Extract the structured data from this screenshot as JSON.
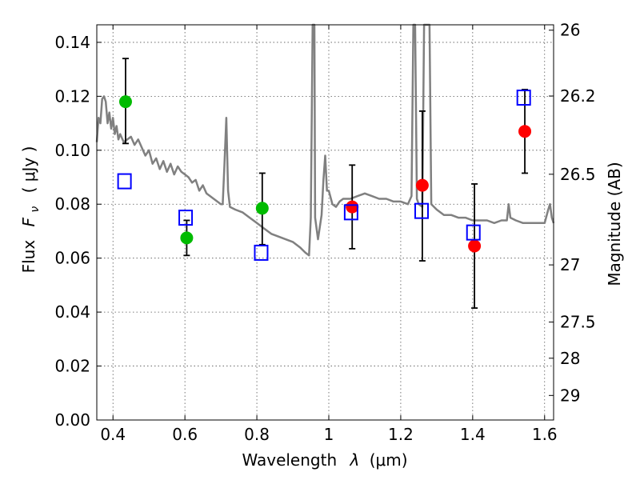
{
  "chart_data": {
    "type": "scatter",
    "xlabel_main": "Wavelength",
    "xlabel_symbol": "λ",
    "xlabel_unit": "(μm)",
    "ylabel_main": "Flux",
    "ylabel_symbol": "F",
    "ylabel_subscript": "ν",
    "ylabel_unit": "( μJy )",
    "y2label": "Magnitude (AB)",
    "xlim": [
      0.355,
      1.625
    ],
    "ylim": [
      0.0,
      0.1465
    ],
    "grid": true,
    "x_ticks": [
      0.4,
      0.6,
      0.8,
      1.0,
      1.2,
      1.4,
      1.6
    ],
    "x_tick_labels": [
      "0.4",
      "0.6",
      "0.8",
      "1",
      "1.2",
      "1.4",
      "1.6"
    ],
    "y_ticks": [
      0.0,
      0.02,
      0.04,
      0.06,
      0.08,
      0.1,
      0.12,
      0.14
    ],
    "y_tick_labels": [
      "0.00",
      "0.02",
      "0.04",
      "0.06",
      "0.08",
      "0.10",
      "0.12",
      "0.14"
    ],
    "y2_ticks": [
      {
        "label": "26",
        "flux": 0.1445
      },
      {
        "label": "26.2",
        "flux": 0.1201
      },
      {
        "label": "26.5",
        "flux": 0.0911
      },
      {
        "label": "27",
        "flux": 0.0575
      },
      {
        "label": "27.5",
        "flux": 0.0363
      },
      {
        "label": "28",
        "flux": 0.0229
      },
      {
        "label": "29",
        "flux": 0.0091
      }
    ],
    "colors": {
      "model": "#808080",
      "green": "#00bb00",
      "red": "#ff0000",
      "square": "#0000ff",
      "errorbar": "#000000",
      "grid": "#555555"
    },
    "series": [
      {
        "kind": "model-spectrum",
        "points": [
          [
            0.355,
            0.103
          ],
          [
            0.36,
            0.112
          ],
          [
            0.365,
            0.11
          ],
          [
            0.37,
            0.119
          ],
          [
            0.375,
            0.12
          ],
          [
            0.38,
            0.118
          ],
          [
            0.385,
            0.11
          ],
          [
            0.39,
            0.114
          ],
          [
            0.395,
            0.108
          ],
          [
            0.4,
            0.112
          ],
          [
            0.405,
            0.106
          ],
          [
            0.41,
            0.109
          ],
          [
            0.415,
            0.104
          ],
          [
            0.42,
            0.106
          ],
          [
            0.43,
            0.103
          ],
          [
            0.44,
            0.104
          ],
          [
            0.45,
            0.105
          ],
          [
            0.46,
            0.102
          ],
          [
            0.47,
            0.104
          ],
          [
            0.48,
            0.101
          ],
          [
            0.49,
            0.098
          ],
          [
            0.5,
            0.1
          ],
          [
            0.51,
            0.095
          ],
          [
            0.52,
            0.097
          ],
          [
            0.53,
            0.093
          ],
          [
            0.54,
            0.096
          ],
          [
            0.55,
            0.092
          ],
          [
            0.56,
            0.095
          ],
          [
            0.57,
            0.091
          ],
          [
            0.58,
            0.094
          ],
          [
            0.59,
            0.092
          ],
          [
            0.6,
            0.091
          ],
          [
            0.61,
            0.09
          ],
          [
            0.62,
            0.088
          ],
          [
            0.63,
            0.089
          ],
          [
            0.64,
            0.085
          ],
          [
            0.65,
            0.087
          ],
          [
            0.66,
            0.084
          ],
          [
            0.67,
            0.083
          ],
          [
            0.68,
            0.082
          ],
          [
            0.69,
            0.081
          ],
          [
            0.7,
            0.08
          ],
          [
            0.705,
            0.08
          ],
          [
            0.71,
            0.095
          ],
          [
            0.715,
            0.112
          ],
          [
            0.72,
            0.085
          ],
          [
            0.725,
            0.079
          ],
          [
            0.74,
            0.078
          ],
          [
            0.76,
            0.077
          ],
          [
            0.78,
            0.075
          ],
          [
            0.8,
            0.073
          ],
          [
            0.82,
            0.071
          ],
          [
            0.84,
            0.069
          ],
          [
            0.86,
            0.068
          ],
          [
            0.88,
            0.067
          ],
          [
            0.9,
            0.066
          ],
          [
            0.92,
            0.064
          ],
          [
            0.935,
            0.062
          ],
          [
            0.945,
            0.061
          ],
          [
            0.95,
            0.075
          ],
          [
            0.955,
            0.1465
          ],
          [
            0.96,
            0.1465
          ],
          [
            0.962,
            0.075
          ],
          [
            0.97,
            0.067
          ],
          [
            0.98,
            0.076
          ],
          [
            0.985,
            0.089
          ],
          [
            0.99,
            0.098
          ],
          [
            0.995,
            0.085
          ],
          [
            1.0,
            0.085
          ],
          [
            1.01,
            0.08
          ],
          [
            1.02,
            0.079
          ],
          [
            1.03,
            0.081
          ],
          [
            1.04,
            0.082
          ],
          [
            1.06,
            0.082
          ],
          [
            1.08,
            0.083
          ],
          [
            1.1,
            0.084
          ],
          [
            1.12,
            0.083
          ],
          [
            1.14,
            0.082
          ],
          [
            1.16,
            0.082
          ],
          [
            1.18,
            0.081
          ],
          [
            1.2,
            0.081
          ],
          [
            1.22,
            0.08
          ],
          [
            1.23,
            0.083
          ],
          [
            1.235,
            0.1465
          ],
          [
            1.24,
            0.1465
          ],
          [
            1.245,
            0.082
          ],
          [
            1.25,
            0.08
          ],
          [
            1.26,
            0.079
          ],
          [
            1.265,
            0.1465
          ],
          [
            1.275,
            0.1465
          ],
          [
            1.28,
            0.1465
          ],
          [
            1.285,
            0.08
          ],
          [
            1.3,
            0.078
          ],
          [
            1.32,
            0.076
          ],
          [
            1.34,
            0.076
          ],
          [
            1.36,
            0.075
          ],
          [
            1.38,
            0.075
          ],
          [
            1.4,
            0.074
          ],
          [
            1.42,
            0.074
          ],
          [
            1.44,
            0.074
          ],
          [
            1.46,
            0.073
          ],
          [
            1.48,
            0.074
          ],
          [
            1.495,
            0.074
          ],
          [
            1.5,
            0.08
          ],
          [
            1.505,
            0.075
          ],
          [
            1.52,
            0.074
          ],
          [
            1.54,
            0.073
          ],
          [
            1.56,
            0.073
          ],
          [
            1.58,
            0.073
          ],
          [
            1.6,
            0.073
          ],
          [
            1.61,
            0.078
          ],
          [
            1.615,
            0.08
          ],
          [
            1.62,
            0.075
          ],
          [
            1.625,
            0.073
          ]
        ]
      },
      {
        "kind": "green-points",
        "points": [
          {
            "x": 0.435,
            "y": 0.118,
            "yerr_low": 0.1025,
            "yerr_high": 0.134
          },
          {
            "x": 0.605,
            "y": 0.0675,
            "yerr_low": 0.061,
            "yerr_high": 0.074
          },
          {
            "x": 0.815,
            "y": 0.0785,
            "yerr_low": 0.065,
            "yerr_high": 0.0915
          }
        ]
      },
      {
        "kind": "red-points",
        "points": [
          {
            "x": 1.065,
            "y": 0.079,
            "yerr_low": 0.0635,
            "yerr_high": 0.0945
          },
          {
            "x": 1.26,
            "y": 0.087,
            "yerr_low": 0.059,
            "yerr_high": 0.1145
          },
          {
            "x": 1.405,
            "y": 0.0645,
            "yerr_low": 0.0415,
            "yerr_high": 0.0875
          },
          {
            "x": 1.545,
            "y": 0.107,
            "yerr_low": 0.0915,
            "yerr_high": 0.1225
          }
        ]
      },
      {
        "kind": "model-squares",
        "points": [
          {
            "x": 0.432,
            "y": 0.0885
          },
          {
            "x": 0.602,
            "y": 0.075
          },
          {
            "x": 0.812,
            "y": 0.062
          },
          {
            "x": 1.062,
            "y": 0.077
          },
          {
            "x": 1.258,
            "y": 0.0775
          },
          {
            "x": 1.402,
            "y": 0.0695
          },
          {
            "x": 1.542,
            "y": 0.1195
          }
        ]
      }
    ]
  }
}
